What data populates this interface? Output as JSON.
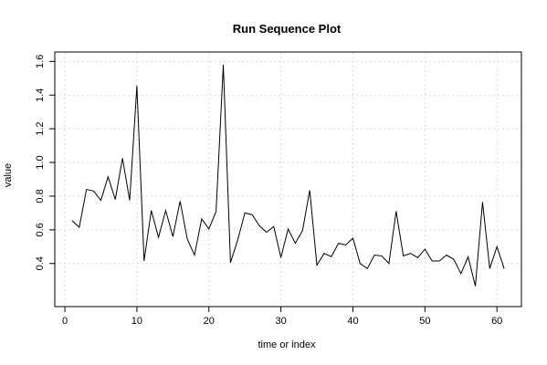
{
  "chart_data": {
    "type": "line",
    "title": "Run Sequence Plot",
    "xlabel": "time or index",
    "ylabel": "value",
    "xlim": [
      -1.4,
      63.4
    ],
    "ylim": [
      0.2,
      1.6
    ],
    "xticks": [
      0,
      10,
      20,
      30,
      40,
      50,
      60
    ],
    "yticks": [
      0.4,
      0.6,
      0.8,
      1.0,
      1.2,
      1.4,
      1.6
    ],
    "ytick_labels": [
      "0.4",
      "0.6",
      "0.8",
      "1.0",
      "1.2",
      "1.4",
      "1.6"
    ],
    "grid": true,
    "x": [
      1,
      2,
      3,
      4,
      5,
      6,
      7,
      8,
      9,
      10,
      11,
      12,
      13,
      14,
      15,
      16,
      17,
      18,
      19,
      20,
      21,
      22,
      23,
      24,
      25,
      26,
      27,
      28,
      29,
      30,
      31,
      32,
      33,
      34,
      35,
      36,
      37,
      38,
      39,
      40,
      41,
      42,
      43,
      44,
      45,
      46,
      47,
      48,
      49,
      50,
      51,
      52,
      53,
      54,
      55,
      56,
      57,
      58,
      59,
      60,
      61
    ],
    "y": [
      0.655,
      0.615,
      0.84,
      0.83,
      0.775,
      0.915,
      0.78,
      1.025,
      0.775,
      1.455,
      0.415,
      0.715,
      0.555,
      0.715,
      0.56,
      0.77,
      0.545,
      0.45,
      0.665,
      0.605,
      0.71,
      1.58,
      0.405,
      0.54,
      0.7,
      0.69,
      0.625,
      0.585,
      0.62,
      0.435,
      0.605,
      0.52,
      0.595,
      0.835,
      0.39,
      0.46,
      0.44,
      0.52,
      0.51,
      0.55,
      0.4,
      0.37,
      0.45,
      0.445,
      0.4,
      0.71,
      0.445,
      0.46,
      0.435,
      0.485,
      0.415,
      0.415,
      0.45,
      0.425,
      0.34,
      0.44,
      0.265,
      0.765,
      0.37,
      0.5,
      0.37
    ]
  }
}
